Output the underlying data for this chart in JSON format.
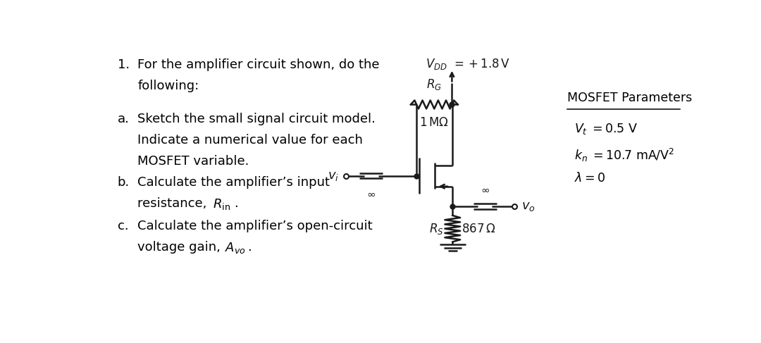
{
  "bg_color": "#ffffff",
  "circuit_color": "#1a1a1a",
  "lw": 1.8,
  "vdd_label": "$V_{DD} = +1.8$ V",
  "rg_label_top": "$R_G$",
  "rg_label_bot": "$1\\,{\\rm M}\\Omega$",
  "rs_label": "$R_S$",
  "rs_val": "$867\\,\\Omega$",
  "vi_label": "$v_i$",
  "vo_label": "$v_o$",
  "inf_sym": "$\\infty$",
  "params_title": "MOSFET Parameters",
  "param1": "$V_t = 0.5$ V",
  "param2": "$k_n = 10.7$ mA/V$^2$",
  "param3": "$\\lambda = 0$",
  "text_1_num": "1.",
  "text_1": "For the amplifier circuit shown, do the",
  "text_1b": "following:",
  "text_a_num": "a.",
  "text_a1": "Sketch the small signal circuit model.",
  "text_a2": "Indicate a numerical value for each",
  "text_a3": "MOSFET variable.",
  "text_b_num": "b.",
  "text_b1": "Calculate the amplifier’s input",
  "text_b2": "resistance,",
  "text_b2_math": "$R_{\\rm in}$",
  "text_b2_dot": ".",
  "text_c_num": "c.",
  "text_c1": "Calculate the amplifier’s open-circuit",
  "text_c2": "voltage gain,",
  "text_c2_math": "$A_{vo}$",
  "text_c2_dot": "."
}
